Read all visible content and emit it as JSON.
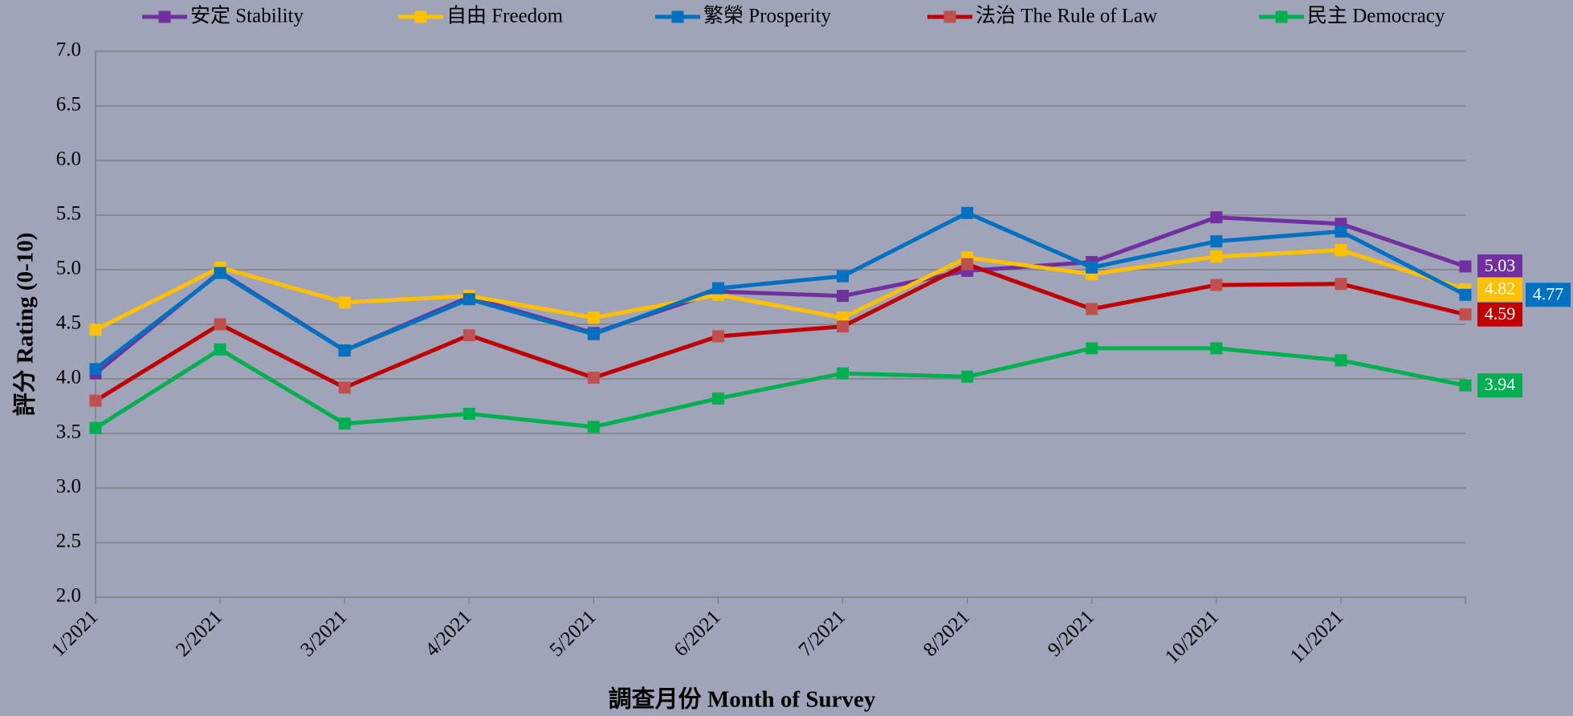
{
  "chart_data": {
    "type": "line",
    "x_label": "調查月份 Month of Survey",
    "y_label": "評分 Rating (0-10)",
    "categories": [
      "1/2021",
      "2/2021",
      "3/2021",
      "4/2021",
      "5/2021",
      "6/2021",
      "7/2021",
      "8/2021",
      "9/2021",
      "10/2021",
      "11/2021",
      null
    ],
    "series": [
      {
        "name": "安定 Stability",
        "color": "#7030a0",
        "values": [
          4.05,
          4.98,
          4.26,
          4.75,
          4.42,
          4.8,
          4.76,
          4.99,
          5.07,
          5.48,
          5.42,
          5.03
        ]
      },
      {
        "name": "自由 Freedom",
        "color": "#ffc000",
        "values": [
          4.45,
          5.02,
          4.7,
          4.76,
          4.56,
          4.77,
          4.56,
          5.11,
          4.96,
          5.12,
          5.18,
          4.82
        ]
      },
      {
        "name": "繁榮 Prosperity",
        "color": "#0070c0",
        "values": [
          4.09,
          4.97,
          4.26,
          4.73,
          4.41,
          4.83,
          4.94,
          5.52,
          5.02,
          5.26,
          5.35,
          4.77
        ]
      },
      {
        "name": "法治 The Rule of Law",
        "color": "#c00000",
        "values": [
          3.8,
          4.5,
          3.92,
          4.4,
          4.01,
          4.39,
          4.48,
          5.05,
          4.64,
          4.86,
          4.87,
          4.59
        ]
      },
      {
        "name": "民主 Democracy",
        "color": "#00b050",
        "values": [
          3.55,
          4.27,
          3.59,
          3.68,
          3.56,
          3.82,
          4.05,
          4.02,
          4.28,
          4.28,
          4.17,
          3.94
        ]
      }
    ],
    "ylim": [
      2,
      7
    ],
    "yticks": [
      {
        "value": 2,
        "label": "2.0"
      },
      {
        "value": 2.5,
        "label": "2.5"
      },
      {
        "value": 3,
        "label": "3.0"
      },
      {
        "value": 3.5,
        "label": "3.5"
      },
      {
        "value": 4,
        "label": "4.0"
      },
      {
        "value": 4.5,
        "label": "4.5"
      },
      {
        "value": 5,
        "label": "5.0"
      },
      {
        "value": 5.5,
        "label": "5.5"
      },
      {
        "value": 6,
        "label": "6.0"
      },
      {
        "value": 6.5,
        "label": "6.5"
      },
      {
        "value": 7,
        "label": "7.0"
      }
    ],
    "grid": true,
    "legend": "top"
  }
}
